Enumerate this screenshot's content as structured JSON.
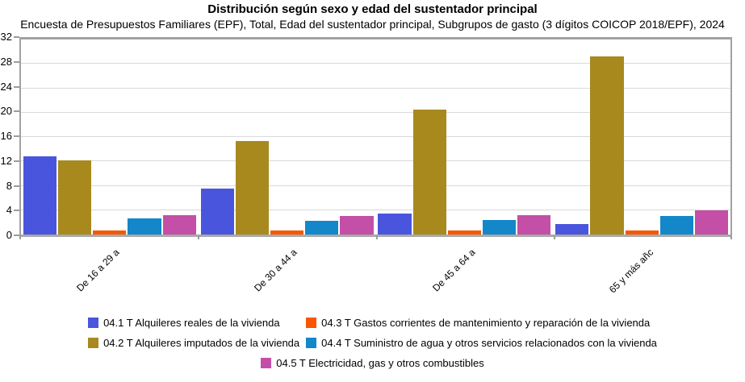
{
  "chart_data": {
    "type": "bar",
    "title": "Distribución según sexo y edad del sustentador principal",
    "subtitle": "Encuesta de Presupuestos Familiares (EPF), Total, Edad del sustentador principal, Subgrupos de gasto (3 dígitos COICOP 2018/EPF), 2024",
    "categories": [
      "De 16 a 29 a",
      "De 30 a 44 a",
      "De 45 a 64 a",
      "65 y más añc"
    ],
    "series": [
      {
        "name": "04.1 T Alquileres reales de la vivienda",
        "color": "#4a55dd",
        "values": [
          12.8,
          7.6,
          3.4,
          1.7
        ]
      },
      {
        "name": "04.2 T Alquileres imputados de la vivienda",
        "color": "#a8891e",
        "values": [
          12.2,
          15.3,
          20.5,
          29.2
        ]
      },
      {
        "name": "04.3 T Gastos corrientes de mantenimiento y reparación de la vivienda",
        "color": "#f95602",
        "values": [
          0.6,
          0.6,
          0.6,
          0.6
        ]
      },
      {
        "name": "04.4 T Suministro de agua y otros servicios relacionados con la vivienda",
        "color": "#1387c9",
        "values": [
          2.6,
          2.3,
          2.4,
          3.1
        ]
      },
      {
        "name": "04.5 T Electricidad, gas y otros combustibles",
        "color": "#c34fa6",
        "values": [
          3.2,
          3.1,
          3.2,
          4.0
        ]
      }
    ],
    "legend_order": [
      0,
      2,
      1,
      3,
      4
    ],
    "legend_position": "bottom",
    "ylim": [
      0,
      32
    ],
    "y_ticks": [
      0,
      4,
      8,
      12,
      16,
      20,
      24,
      28,
      32
    ],
    "grid": "horizontal",
    "xlabel": "",
    "ylabel": "",
    "colors": {
      "gridline": "#d9d9d9",
      "frame": "#a2a2a2",
      "tick": "#9c9c9c",
      "text": "#000000",
      "background": "#ffffff"
    }
  }
}
